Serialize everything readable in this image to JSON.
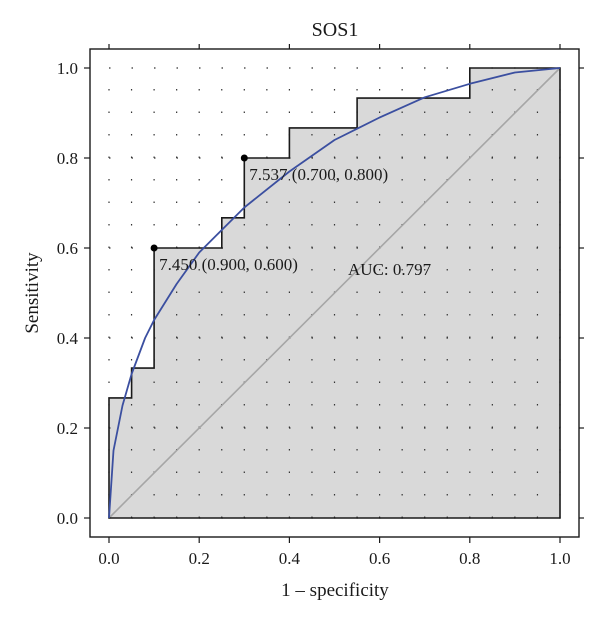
{
  "chart_data": {
    "type": "line",
    "title": "SOS1",
    "xlabel": "1 – specificity",
    "ylabel": "Sensitivity",
    "xlim": [
      0.0,
      1.0
    ],
    "ylim": [
      0.0,
      1.0
    ],
    "xticks": [
      "0.0",
      "0.2",
      "0.4",
      "0.6",
      "0.8",
      "1.0"
    ],
    "yticks": [
      "0.0",
      "0.2",
      "0.4",
      "0.6",
      "0.8",
      "1.0"
    ],
    "grid": "dotted",
    "colors": {
      "roc_fill": "#d9d9d9",
      "roc_step": "#1a1a1a",
      "smooth_curve": "#3b4fa0",
      "diagonal": "#a6a6a6"
    },
    "series": [
      {
        "kind": "empirical-step",
        "x": [
          0.0,
          0.0,
          0.05,
          0.05,
          0.1,
          0.1,
          0.25,
          0.25,
          0.3,
          0.3,
          0.4,
          0.4,
          0.55,
          0.55,
          0.8,
          0.8,
          1.0,
          1.0
        ],
        "y": [
          0.0,
          0.267,
          0.267,
          0.333,
          0.333,
          0.6,
          0.6,
          0.667,
          0.667,
          0.8,
          0.8,
          0.867,
          0.867,
          0.933,
          0.933,
          1.0,
          1.0,
          0.0
        ]
      },
      {
        "kind": "smoothed",
        "x": [
          0.0,
          0.01,
          0.03,
          0.05,
          0.08,
          0.1,
          0.15,
          0.2,
          0.3,
          0.4,
          0.5,
          0.6,
          0.7,
          0.8,
          0.9,
          1.0
        ],
        "y": [
          0.0,
          0.15,
          0.25,
          0.32,
          0.4,
          0.44,
          0.52,
          0.59,
          0.69,
          0.77,
          0.84,
          0.89,
          0.935,
          0.965,
          0.99,
          1.0
        ]
      },
      {
        "kind": "reference",
        "x": [
          0.0,
          1.0
        ],
        "y": [
          0.0,
          1.0
        ]
      }
    ],
    "annotations": [
      {
        "x": 0.1,
        "y": 0.6,
        "label": "7.450 (0.900, 0.600)"
      },
      {
        "x": 0.3,
        "y": 0.8,
        "label": "7.537 (0.700, 0.800)"
      },
      {
        "x": 0.53,
        "y": 0.5,
        "label": "AUC: 0.797"
      }
    ]
  }
}
